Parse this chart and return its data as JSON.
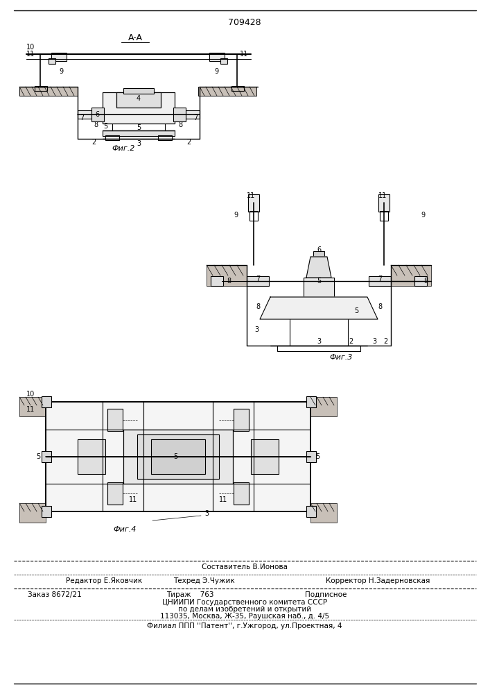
{
  "patent_number": "709428",
  "section_label": "A-A",
  "fig_labels": [
    "Фиг.2",
    "Фиг.3",
    "Фиг.4"
  ],
  "footer_line1_left": "Редактор Е.Яковчик",
  "footer_line1_center": "Составитель В.Ионова",
  "footer_line1_right": "Корректор Н.Задерновская",
  "footer_line2_center": "Техред Э.Чужик",
  "footer_block1": "Заказ 8672/21",
  "footer_block2": "Тираж    763",
  "footer_block3": "Подписное",
  "footer_org1": "ЦНИИПИ Государственного комитета СССР",
  "footer_org2": "по делам изобретений и открытий",
  "footer_org3": "113035, Москва, Ж-35, Раушская наб., д. 4/5",
  "footer_branch": "Филиал ППП ''Патент'', г.Ужгород, ул.Проектная, 4",
  "bg_color": "#ffffff",
  "line_color": "#000000"
}
